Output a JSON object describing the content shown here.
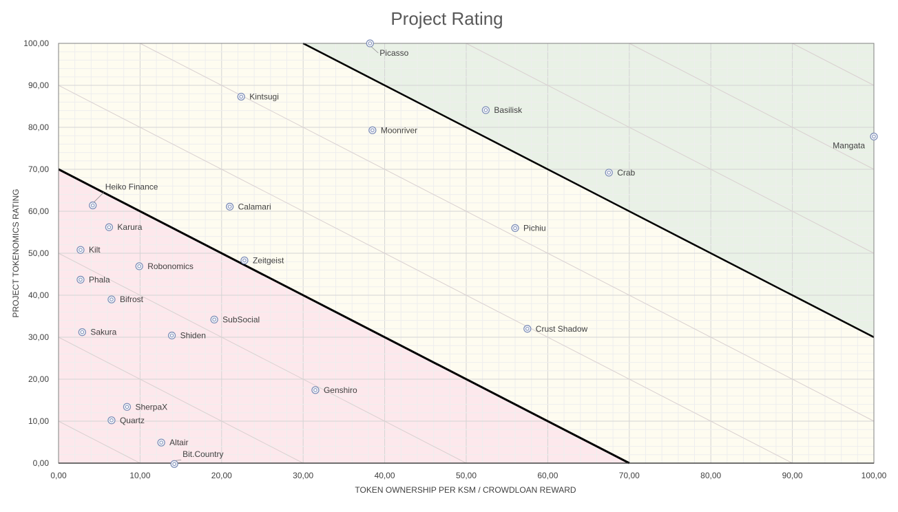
{
  "chart_data": {
    "type": "scatter",
    "title": "Project Rating",
    "xlabel": "TOKEN OWNERSHIP PER KSM / CROWDLOAN REWARD",
    "ylabel": "PROJECT TOKENOMICS RATING",
    "xlim": [
      0,
      100
    ],
    "ylim": [
      0,
      100
    ],
    "x_ticks": [
      "0,00",
      "10,00",
      "20,00",
      "30,00",
      "40,00",
      "50,00",
      "60,00",
      "70,00",
      "80,00",
      "90,00",
      "100,00"
    ],
    "y_ticks": [
      "0,00",
      "10,00",
      "20,00",
      "30,00",
      "40,00",
      "50,00",
      "60,00",
      "70,00",
      "80,00",
      "90,00",
      "100,00"
    ],
    "grid": true,
    "legend": "none",
    "zones": [
      {
        "zone": "low",
        "color": "#fde8ec",
        "boundary": [
          [
            0,
            70
          ],
          [
            70,
            0
          ]
        ]
      },
      {
        "zone": "mid",
        "color": "#fefcf0"
      },
      {
        "zone": "high",
        "color": "#e9f1e6",
        "boundary": [
          [
            30,
            100
          ],
          [
            100,
            30
          ]
        ]
      }
    ],
    "marker_color": "#7f8fb8",
    "points": [
      {
        "label": "Picasso",
        "x": 38.2,
        "y": 100.0
      },
      {
        "label": "Kintsugi",
        "x": 22.4,
        "y": 87.3
      },
      {
        "label": "Basilisk",
        "x": 52.4,
        "y": 84.1
      },
      {
        "label": "Moonriver",
        "x": 38.5,
        "y": 79.3
      },
      {
        "label": "Mangata",
        "x": 100.0,
        "y": 77.8
      },
      {
        "label": "Crab",
        "x": 67.5,
        "y": 69.2
      },
      {
        "label": "Heiko Finance",
        "x": 4.2,
        "y": 61.4
      },
      {
        "label": "Calamari",
        "x": 21.0,
        "y": 61.1
      },
      {
        "label": "Karura",
        "x": 6.2,
        "y": 56.2
      },
      {
        "label": "Pichiu",
        "x": 56.0,
        "y": 56.0
      },
      {
        "label": "Kilt",
        "x": 2.7,
        "y": 50.8
      },
      {
        "label": "Zeitgeist",
        "x": 22.8,
        "y": 48.3
      },
      {
        "label": "Robonomics",
        "x": 9.9,
        "y": 46.9
      },
      {
        "label": "Phala",
        "x": 2.7,
        "y": 43.7
      },
      {
        "label": "Bifrost",
        "x": 6.5,
        "y": 39.0
      },
      {
        "label": "SubSocial",
        "x": 19.1,
        "y": 34.2
      },
      {
        "label": "Crust Shadow",
        "x": 57.5,
        "y": 32.0
      },
      {
        "label": "Sakura",
        "x": 2.9,
        "y": 31.2
      },
      {
        "label": "Shiden",
        "x": 13.9,
        "y": 30.4
      },
      {
        "label": "Genshiro",
        "x": 31.5,
        "y": 17.4
      },
      {
        "label": "SherpaX",
        "x": 8.4,
        "y": 13.4
      },
      {
        "label": "Quartz",
        "x": 6.5,
        "y": 10.2
      },
      {
        "label": "Altair",
        "x": 12.6,
        "y": 4.9
      },
      {
        "label": "Bit.Country",
        "x": 14.2,
        "y": -0.2
      }
    ]
  }
}
